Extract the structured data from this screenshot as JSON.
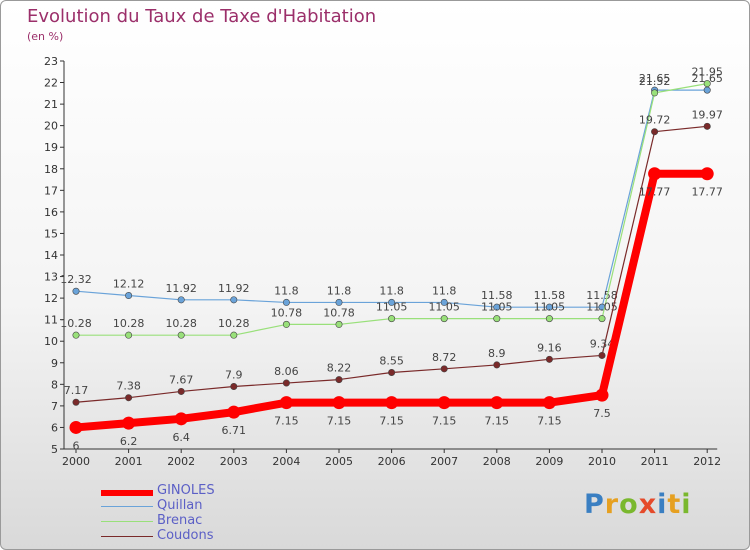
{
  "header": {
    "title": "Evolution du Taux de Taxe d'Habitation",
    "unit": "(en %)"
  },
  "legend": [
    {
      "label": "GINOLES",
      "color": "#ff0000"
    },
    {
      "label": "Quillan",
      "color": "#6aa3d9"
    },
    {
      "label": "Brenac",
      "color": "#99e07a"
    },
    {
      "label": "Coudons",
      "color": "#7a2a2a"
    }
  ],
  "logo": {
    "text": "Proxiti"
  },
  "chart_data": {
    "type": "line",
    "x": [
      "2000",
      "2001",
      "2002",
      "2003",
      "2004",
      "2005",
      "2006",
      "2007",
      "2008",
      "2009",
      "2010",
      "2011",
      "2012"
    ],
    "ylim": [
      5,
      23
    ],
    "yticks": [
      5,
      6,
      7,
      8,
      9,
      10,
      11,
      12,
      13,
      14,
      15,
      16,
      17,
      18,
      19,
      20,
      21,
      22,
      23
    ],
    "grid": false,
    "series": [
      {
        "name": "GINOLES",
        "color": "#ff0000",
        "values": [
          6,
          6.2,
          6.4,
          6.71,
          7.15,
          7.15,
          7.15,
          7.15,
          7.15,
          7.15,
          7.5,
          17.77,
          17.77
        ],
        "labels": [
          "6",
          "6.2",
          "6.4",
          "6.71",
          "7.15",
          "7.15",
          "7.15",
          "7.15",
          "7.15",
          "7.15",
          "7.5",
          "17.77",
          "17.77"
        ]
      },
      {
        "name": "Quillan",
        "color": "#6aa3d9",
        "values": [
          12.32,
          12.12,
          11.92,
          11.92,
          11.8,
          11.8,
          11.8,
          11.8,
          11.58,
          11.58,
          11.58,
          21.65,
          21.65
        ],
        "labels": [
          "12.32",
          "12.12",
          "11.92",
          "11.92",
          "11.8",
          "11.8",
          "11.8",
          "11.8",
          "11.58",
          "11.58",
          "11.58",
          "21.65",
          "21.65"
        ]
      },
      {
        "name": "Brenac",
        "color": "#99e07a",
        "values": [
          10.28,
          10.28,
          10.28,
          10.28,
          10.78,
          10.78,
          11.05,
          11.05,
          11.05,
          11.05,
          11.05,
          21.52,
          21.95
        ],
        "labels": [
          "10.28",
          "10.28",
          "10.28",
          "10.28",
          "10.78",
          "10.78",
          "11.05",
          "11.05",
          "11.05",
          "11.05",
          "11.05",
          "21.52",
          "21.95"
        ]
      },
      {
        "name": "Coudons",
        "color": "#7a2a2a",
        "values": [
          7.17,
          7.38,
          7.67,
          7.9,
          8.06,
          8.22,
          8.55,
          8.72,
          8.9,
          9.16,
          9.34,
          19.72,
          19.97
        ],
        "labels": [
          "7.17",
          "7.38",
          "7.67",
          "7.9",
          "8.06",
          "8.22",
          "8.55",
          "8.72",
          "8.9",
          "9.16",
          "9.34",
          "19.72",
          "19.97"
        ]
      }
    ]
  }
}
